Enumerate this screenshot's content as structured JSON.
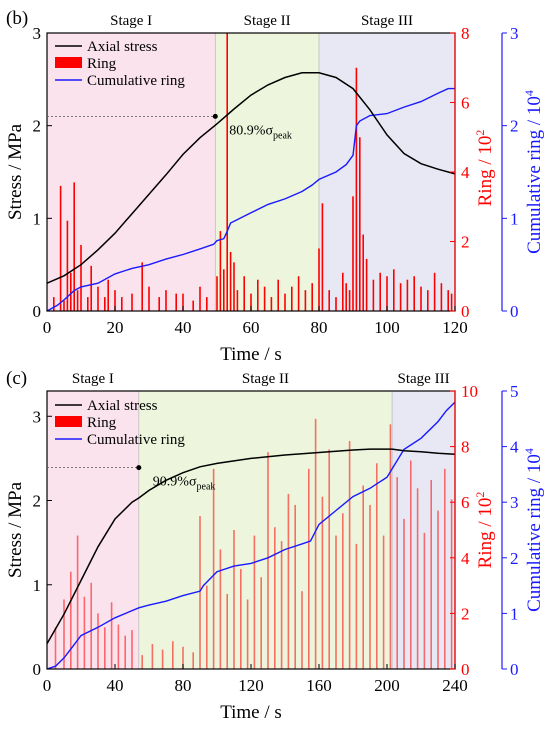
{
  "colors": {
    "stress": "#000000",
    "ring": "#ff0000",
    "cumulative": "#1a1aff",
    "stage1_bg": "#fbe3ee",
    "stage2_bg": "#edf6dc",
    "stage3_bg": "#e8e8f4"
  },
  "chart_data": [
    {
      "type": "line",
      "panel_label": "(b)",
      "xlabel": "Time / s",
      "ylabel_left": "Stress / MPa",
      "ylabel_right1": "Ring / 10",
      "ylabel_right1_sup": "2",
      "ylabel_right2": "Cumulative ring / 10",
      "ylabel_right2_sup": "4",
      "xlim": [
        0,
        120
      ],
      "ylim_left": [
        0,
        3
      ],
      "ylim_ring": [
        0,
        8
      ],
      "ylim_cum": [
        0,
        3
      ],
      "x_ticks": [
        "0",
        "20",
        "40",
        "60",
        "80",
        "100",
        "120"
      ],
      "y_left_ticks": [
        "0",
        "1",
        "2",
        "3"
      ],
      "y_ring_ticks": [
        "0",
        "2",
        "4",
        "6",
        "8"
      ],
      "y_cum_ticks": [
        "0",
        "1",
        "2",
        "3"
      ],
      "stages": [
        {
          "label": "Stage I",
          "start": 0,
          "end": 49.5
        },
        {
          "label": "Stage II",
          "start": 49.5,
          "end": 80
        },
        {
          "label": "Stage III",
          "start": 80,
          "end": 120
        }
      ],
      "legend": [
        "Axial stress",
        "Ring",
        "Cumulative ring"
      ],
      "annotation": {
        "prefix": "80.9%σ",
        "sub": "peak",
        "x": 49.5,
        "y": 2.1
      },
      "series": [
        {
          "name": "Axial stress",
          "axis": "left",
          "x": [
            0,
            5,
            10,
            15,
            20,
            25,
            30,
            35,
            40,
            45,
            50,
            55,
            60,
            65,
            70,
            75,
            80,
            85,
            90,
            95,
            100,
            105,
            110,
            115,
            120
          ],
          "y": [
            0.3,
            0.38,
            0.5,
            0.66,
            0.84,
            1.05,
            1.26,
            1.47,
            1.69,
            1.87,
            2.02,
            2.18,
            2.33,
            2.44,
            2.52,
            2.57,
            2.57,
            2.52,
            2.4,
            2.17,
            1.9,
            1.7,
            1.59,
            1.53,
            1.48
          ]
        },
        {
          "name": "Cumulative ring",
          "axis": "right2",
          "x": [
            0,
            3,
            5,
            8,
            10,
            15,
            20,
            25,
            30,
            35,
            40,
            45,
            49,
            50,
            52,
            53,
            54,
            60,
            65,
            70,
            75,
            78,
            80,
            85,
            88,
            90,
            91,
            92,
            95,
            100,
            105,
            110,
            115,
            118,
            120
          ],
          "y": [
            0,
            0.06,
            0.12,
            0.22,
            0.26,
            0.3,
            0.4,
            0.46,
            0.5,
            0.56,
            0.61,
            0.67,
            0.72,
            0.76,
            0.78,
            0.86,
            0.95,
            1.06,
            1.15,
            1.21,
            1.29,
            1.36,
            1.42,
            1.5,
            1.58,
            1.68,
            2.0,
            2.05,
            2.11,
            2.13,
            2.2,
            2.26,
            2.35,
            2.4,
            2.4
          ]
        },
        {
          "name": "Ring",
          "axis": "right1",
          "type": "bar",
          "x": [
            2,
            4,
            5,
            6,
            7,
            8,
            9,
            10,
            12,
            13,
            15,
            17,
            18,
            20,
            22,
            25,
            28,
            30,
            33,
            35,
            38,
            40,
            43,
            45,
            47,
            50,
            51,
            52,
            53,
            54,
            55,
            56,
            58,
            60,
            62,
            64,
            66,
            68,
            70,
            72,
            74,
            76,
            78,
            80,
            81,
            83,
            85,
            87,
            88,
            89,
            90,
            91,
            92,
            93,
            94,
            96,
            98,
            100,
            102,
            104,
            106,
            108,
            110,
            112,
            114,
            116,
            118,
            119
          ],
          "y": [
            0.4,
            3.6,
            0.3,
            2.6,
            1.1,
            3.7,
            0.6,
            1.9,
            0.4,
            1.3,
            0.7,
            0.4,
            0.9,
            0.6,
            0.4,
            0.5,
            1.4,
            0.7,
            0.4,
            0.6,
            0.5,
            0.5,
            0.3,
            0.7,
            0.4,
            1.0,
            2.3,
            1.2,
            8.0,
            1.7,
            1.4,
            0.6,
            1.0,
            0.5,
            0.9,
            0.7,
            0.4,
            0.9,
            0.5,
            0.7,
            1.0,
            0.6,
            0.8,
            1.8,
            3.1,
            0.6,
            0.4,
            1.1,
            0.8,
            0.6,
            3.3,
            7.0,
            5.0,
            2.2,
            1.5,
            0.9,
            1.1,
            1.0,
            1.2,
            0.8,
            0.9,
            1.0,
            0.7,
            0.6,
            1.1,
            0.8,
            0.6,
            0.5
          ]
        }
      ]
    },
    {
      "type": "line",
      "panel_label": "(c)",
      "xlabel": "Time / s",
      "ylabel_left": "Stress / MPa",
      "ylabel_right1": "Ring / 10",
      "ylabel_right1_sup": "2",
      "ylabel_right2": "Cumulative ring / 10",
      "ylabel_right2_sup": "4",
      "xlim": [
        0,
        240
      ],
      "ylim_left": [
        0,
        3.3
      ],
      "ylim_ring": [
        0,
        10
      ],
      "ylim_cum": [
        0,
        5
      ],
      "x_ticks": [
        "0",
        "40",
        "80",
        "120",
        "160",
        "200",
        "240"
      ],
      "y_left_ticks": [
        "0",
        "1",
        "2",
        "3"
      ],
      "y_ring_ticks": [
        "0",
        "2",
        "4",
        "6",
        "8",
        "10"
      ],
      "y_cum_ticks": [
        "0",
        "1",
        "2",
        "3",
        "4",
        "5"
      ],
      "stages": [
        {
          "label": "Stage I",
          "start": 0,
          "end": 54
        },
        {
          "label": "Stage II",
          "start": 54,
          "end": 203
        },
        {
          "label": "Stage III",
          "start": 203,
          "end": 240
        }
      ],
      "legend": [
        "Axial stress",
        "Ring",
        "Cumulative ring"
      ],
      "annotation": {
        "prefix": "90.9%σ",
        "sub": "peak",
        "x": 54,
        "y": 2.39
      },
      "series": [
        {
          "name": "Axial stress",
          "axis": "left",
          "x": [
            0,
            10,
            20,
            30,
            40,
            50,
            54,
            60,
            70,
            80,
            90,
            100,
            110,
            120,
            140,
            160,
            180,
            190,
            200,
            203,
            210,
            220,
            230,
            240
          ],
          "y": [
            0.3,
            0.65,
            1.05,
            1.45,
            1.78,
            1.98,
            2.03,
            2.12,
            2.24,
            2.33,
            2.4,
            2.44,
            2.47,
            2.5,
            2.54,
            2.57,
            2.6,
            2.61,
            2.61,
            2.61,
            2.59,
            2.58,
            2.56,
            2.55
          ]
        },
        {
          "name": "Cumulative ring",
          "axis": "right2",
          "x": [
            0,
            5,
            10,
            15,
            20,
            30,
            40,
            54,
            60,
            70,
            80,
            90,
            92,
            100,
            110,
            120,
            130,
            140,
            150,
            155,
            160,
            170,
            180,
            190,
            200,
            205,
            210,
            220,
            230,
            235,
            240
          ],
          "y": [
            0,
            0.05,
            0.2,
            0.4,
            0.6,
            0.75,
            0.92,
            1.1,
            1.15,
            1.22,
            1.32,
            1.4,
            1.5,
            1.75,
            1.85,
            1.9,
            2.0,
            2.15,
            2.25,
            2.3,
            2.6,
            2.85,
            3.1,
            3.25,
            3.45,
            3.7,
            3.95,
            4.15,
            4.45,
            4.65,
            4.8
          ]
        },
        {
          "name": "Ring",
          "axis": "right1",
          "type": "bar",
          "x": [
            5,
            10,
            14,
            18,
            22,
            26,
            30,
            34,
            38,
            42,
            46,
            50,
            56,
            62,
            68,
            74,
            80,
            86,
            90,
            94,
            98,
            102,
            106,
            110,
            114,
            118,
            122,
            126,
            130,
            134,
            138,
            142,
            146,
            150,
            154,
            158,
            162,
            166,
            170,
            174,
            178,
            182,
            186,
            190,
            194,
            198,
            202,
            206,
            210,
            214,
            218,
            222,
            226,
            230,
            234,
            238
          ],
          "y": [
            1.5,
            2.5,
            3.5,
            4.8,
            2.6,
            3.1,
            2.0,
            1.5,
            2.4,
            1.6,
            1.2,
            1.4,
            0.5,
            0.9,
            0.7,
            1.0,
            0.8,
            0.6,
            5.5,
            3.0,
            7.2,
            4.3,
            2.7,
            5.0,
            3.6,
            2.5,
            4.8,
            3.3,
            7.8,
            5.1,
            4.6,
            6.3,
            5.9,
            2.8,
            7.2,
            9.0,
            6.2,
            7.9,
            4.8,
            5.6,
            8.2,
            4.5,
            6.6,
            5.9,
            7.4,
            4.8,
            8.8,
            6.9,
            5.4,
            7.5,
            6.5,
            4.9,
            6.8,
            5.7,
            7.2,
            6.1
          ]
        }
      ]
    }
  ]
}
